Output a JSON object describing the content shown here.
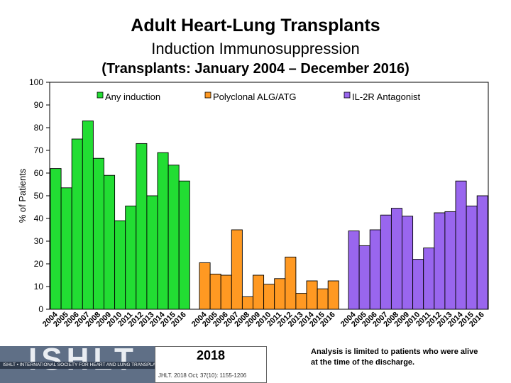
{
  "title": "Adult Heart-Lung Transplants",
  "subtitle": "Induction Immunosuppression",
  "subtitle2": "(Transplants: January 2004 – December 2016)",
  "chart_data": {
    "type": "bar",
    "ylabel": "% of Patients",
    "ylim": [
      0,
      100
    ],
    "yticks": [
      0,
      10,
      20,
      30,
      40,
      50,
      60,
      70,
      80,
      90,
      100
    ],
    "categories": [
      "2004",
      "2005",
      "2006",
      "2007",
      "2008",
      "2009",
      "2010",
      "2011",
      "2012",
      "2013",
      "2014",
      "2015",
      "2016"
    ],
    "legend_position": "top",
    "series": [
      {
        "name": "Any induction",
        "color": "#22dd33",
        "values": [
          62,
          53.5,
          75,
          83,
          66.5,
          59,
          39,
          45.5,
          73,
          50,
          69,
          63.5,
          56.5
        ]
      },
      {
        "name": "Polyclonal ALG/ATG",
        "color": "#ff9922",
        "values": [
          20.5,
          15.5,
          15,
          35,
          5.5,
          15,
          11,
          13.5,
          23,
          7,
          12.5,
          9,
          12.5
        ]
      },
      {
        "name": "IL-2R Antagonist",
        "color": "#9966ee",
        "values": [
          34.5,
          28,
          35,
          41.5,
          44.5,
          41,
          22,
          27,
          42.5,
          43,
          56.5,
          45.5,
          50
        ]
      }
    ]
  },
  "footer": {
    "logo_text": "ISHLT",
    "logo_strip": "ISHLT • INTERNATIONAL SOCIETY FOR HEART AND LUNG TRANSPLANTATION",
    "year": "2018",
    "citation": "JHLT. 2018 Oct; 37(10): 1155-1206",
    "note": "Analysis is limited to patients who were alive at the time of the discharge."
  }
}
